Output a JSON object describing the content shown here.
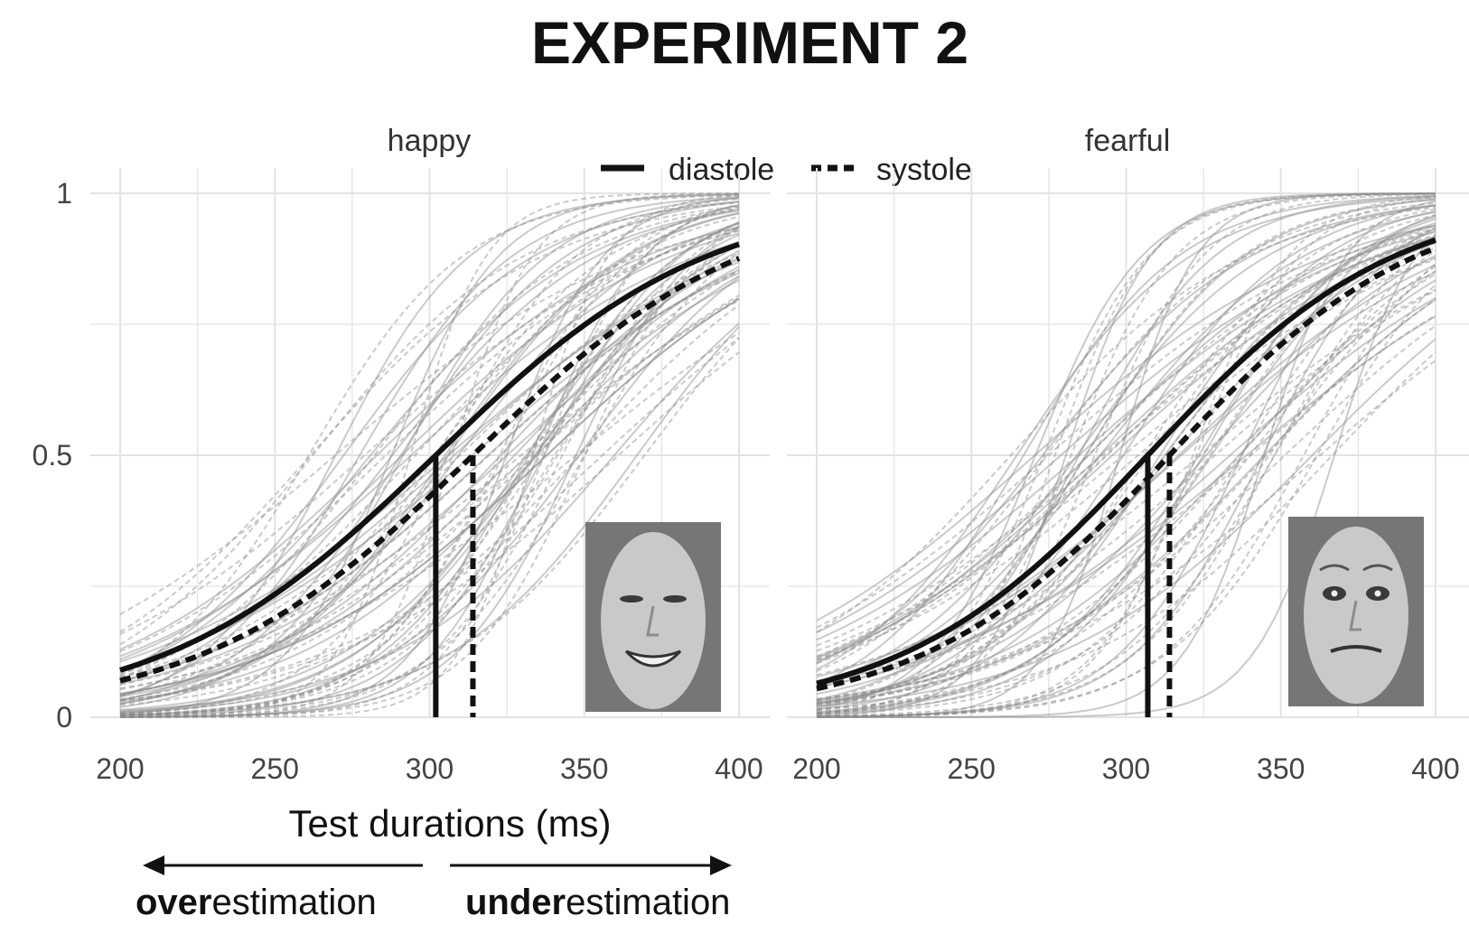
{
  "figure": {
    "title": "EXPERIMENT 2",
    "x_axis_title": "Test durations (ms)",
    "annotations": {
      "left_bold": "over",
      "left_rest": "estimation",
      "right_bold": "under",
      "right_rest": "estimation"
    },
    "legend": [
      {
        "label": "diastole",
        "style": "solid"
      },
      {
        "label": "systole",
        "style": "dashed"
      }
    ]
  },
  "chart_data": [
    {
      "type": "line",
      "panel": "happy",
      "xlim": [
        200,
        400
      ],
      "ylim": [
        0,
        1
      ],
      "x_ticks": [
        "200",
        "250",
        "300",
        "350",
        "400"
      ],
      "y_ticks": [
        "0",
        "0.5",
        "1"
      ],
      "grid": true,
      "legend_position": "top-center",
      "series": [
        {
          "name": "diastole",
          "style": "solid",
          "pse": 302,
          "slope": 44,
          "points": [
            [
              200,
              0.07
            ],
            [
              250,
              0.2
            ],
            [
              300,
              0.48
            ],
            [
              350,
              0.76
            ],
            [
              400,
              0.92
            ]
          ]
        },
        {
          "name": "systole",
          "style": "dashed",
          "pse": 314,
          "slope": 44,
          "points": [
            [
              200,
              0.06
            ],
            [
              250,
              0.17
            ],
            [
              300,
              0.42
            ],
            [
              350,
              0.7
            ],
            [
              400,
              0.88
            ]
          ]
        }
      ],
      "pse_markers": [
        {
          "series": "diastole",
          "x": 302
        },
        {
          "series": "systole",
          "x": 314
        }
      ],
      "participant_curves": "many individual fits drawn in light grey (solid and dashed)",
      "inset": "happy face photograph"
    },
    {
      "type": "line",
      "panel": "fearful",
      "xlim": [
        200,
        400
      ],
      "ylim": [
        0,
        1
      ],
      "x_ticks": [
        "200",
        "250",
        "300",
        "350",
        "400"
      ],
      "y_ticks": [
        "0",
        "0.5",
        "1"
      ],
      "grid": true,
      "series": [
        {
          "name": "diastole",
          "style": "solid",
          "pse": 307,
          "slope": 40,
          "points": [
            [
              200,
              0.05
            ],
            [
              250,
              0.18
            ],
            [
              300,
              0.46
            ],
            [
              350,
              0.77
            ],
            [
              400,
              0.92
            ]
          ]
        },
        {
          "name": "systole",
          "style": "dashed",
          "pse": 314,
          "slope": 40,
          "points": [
            [
              200,
              0.05
            ],
            [
              250,
              0.16
            ],
            [
              300,
              0.42
            ],
            [
              350,
              0.73
            ],
            [
              400,
              0.89
            ]
          ]
        }
      ],
      "pse_markers": [
        {
          "series": "diastole",
          "x": 307
        },
        {
          "series": "systole",
          "x": 314
        }
      ],
      "participant_curves": "many individual fits drawn in light grey (solid and dashed)",
      "inset": "fearful face photograph"
    }
  ],
  "colors": {
    "main": "#111111",
    "participant": "#8a8a8a",
    "grid": "#e3e3e3",
    "face_bg": "#767676"
  }
}
